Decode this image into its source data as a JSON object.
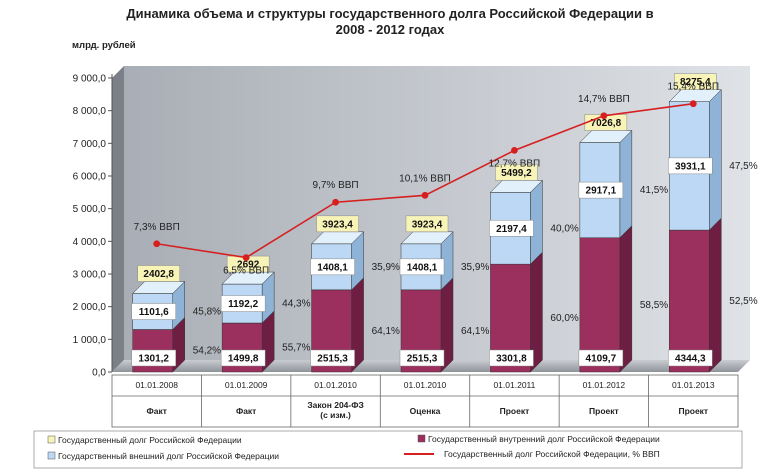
{
  "chart_data": {
    "type": "bar",
    "title": "Динамика объема и структуры государственного долга Российской Федерации в 2008 - 2012 годах",
    "title_line1": "Динамика объема и структуры государственного долга Российской Федерации в",
    "title_line2": "2008 - 2012 годах",
    "ylabel": "млрд. рублей",
    "ylim": [
      0,
      9000
    ],
    "yticks": [
      "0,0",
      "1 000,0",
      "2 000,0",
      "3 000,0",
      "4 000,0",
      "5 000,0",
      "6 000,0",
      "7 000,0",
      "8 000,0",
      "9 000,0"
    ],
    "categories": [
      "01.01.2008",
      "01.01.2009",
      "01.01.2010",
      "01.01.2010",
      "01.01.2011",
      "01.01.2012",
      "01.01.2013"
    ],
    "statuses": [
      "Факт",
      "Факт",
      "Закон 204-ФЗ (с изм.)",
      "Оценка",
      "Проект",
      "Проект",
      "Проект"
    ],
    "status_lines": [
      [
        "Факт"
      ],
      [
        "Факт"
      ],
      [
        "Закон 204-ФЗ",
        "(с изм.)"
      ],
      [
        "Оценка"
      ],
      [
        "Проект"
      ],
      [
        "Проект"
      ],
      [
        "Проект"
      ]
    ],
    "series": [
      {
        "name": "Государственный внутренний долг Российской Федерации",
        "values": [
          1301.2,
          1499.8,
          2515.3,
          2515.3,
          3301.8,
          4109.7,
          4344.3
        ],
        "labels": [
          "1301,2",
          "1499,8",
          "2515,3",
          "2515,3",
          "3301,8",
          "4109,7",
          "4344,3"
        ],
        "share_labels": [
          "54,2%",
          "55,7%",
          "64,1%",
          "64,1%",
          "60,0%",
          "58,5%",
          "52,5%"
        ],
        "color": "#9b2f5e"
      },
      {
        "name": "Государственный внешний долг Российской Федерации",
        "values": [
          1101.6,
          1192.2,
          1408.1,
          1408.1,
          2197.4,
          2917.1,
          3931.1
        ],
        "labels": [
          "1101,6",
          "1192,2",
          "1408,1",
          "1408,1",
          "2197,4",
          "2917,1",
          "3931,1"
        ],
        "share_labels": [
          "45,8%",
          "44,3%",
          "35,9%",
          "35,9%",
          "40,0%",
          "41,5%",
          "47,5%"
        ],
        "color": "#bcd8f4"
      }
    ],
    "totals": {
      "name": "Государственный долг Российской Федерации",
      "values": [
        2402.8,
        2692,
        3923.4,
        3923.4,
        5499.2,
        7026.8,
        8275.4
      ],
      "labels": [
        "2402,8",
        "2692",
        "3923,4",
        "3923,4",
        "5499,2",
        "7026,8",
        "8275,4"
      ],
      "color": "#f8f4b8"
    },
    "line": {
      "name": "Государственный долг Российской Федерации, % ВВП",
      "values": [
        7.3,
        6.5,
        9.7,
        10.1,
        12.7,
        14.7,
        15.4
      ],
      "labels": [
        "7,3% ВВП",
        "6,5% ВВП",
        "9,7% ВВП",
        "10,1% ВВП",
        "12,7% ВВП",
        "14,7% ВВП",
        "15,4% ВВП"
      ],
      "color": "#d62020"
    },
    "legend_position": "bottom"
  }
}
